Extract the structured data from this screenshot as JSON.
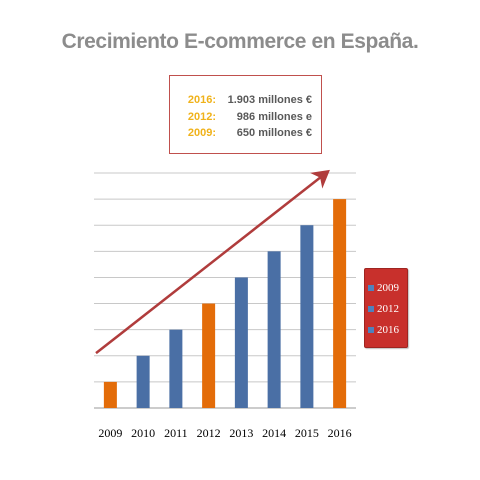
{
  "title": "Crecimiento E-commerce en España.",
  "infobox": [
    {
      "year": "2016:",
      "value": "1.903 millones €"
    },
    {
      "year": "2012:",
      "value": "986 millones e"
    },
    {
      "year": "2009:",
      "value": "650 millones €"
    }
  ],
  "legend": [
    {
      "label": "2009",
      "color": "#4f81bd"
    },
    {
      "label": "2012",
      "color": "#4f81bd"
    },
    {
      "label": "2016",
      "color": "#4f81bd"
    }
  ],
  "colors": {
    "highlight": "#e36c09",
    "bar": "#4a6fa5",
    "arrow": "#b03c3c",
    "grid": "#c8c8c8",
    "legend_bg": "#c8302c"
  },
  "chart_data": {
    "type": "bar",
    "categories": [
      "2009",
      "2010",
      "2011",
      "2012",
      "2013",
      "2014",
      "2015",
      "2016"
    ],
    "values": [
      1,
      2,
      3,
      4,
      5,
      6,
      7,
      8
    ],
    "highlighted": [
      "2009",
      "2012",
      "2016"
    ],
    "ylim": [
      0,
      9
    ],
    "grid": true,
    "y_axis_labels": false,
    "trend_arrow": true
  }
}
